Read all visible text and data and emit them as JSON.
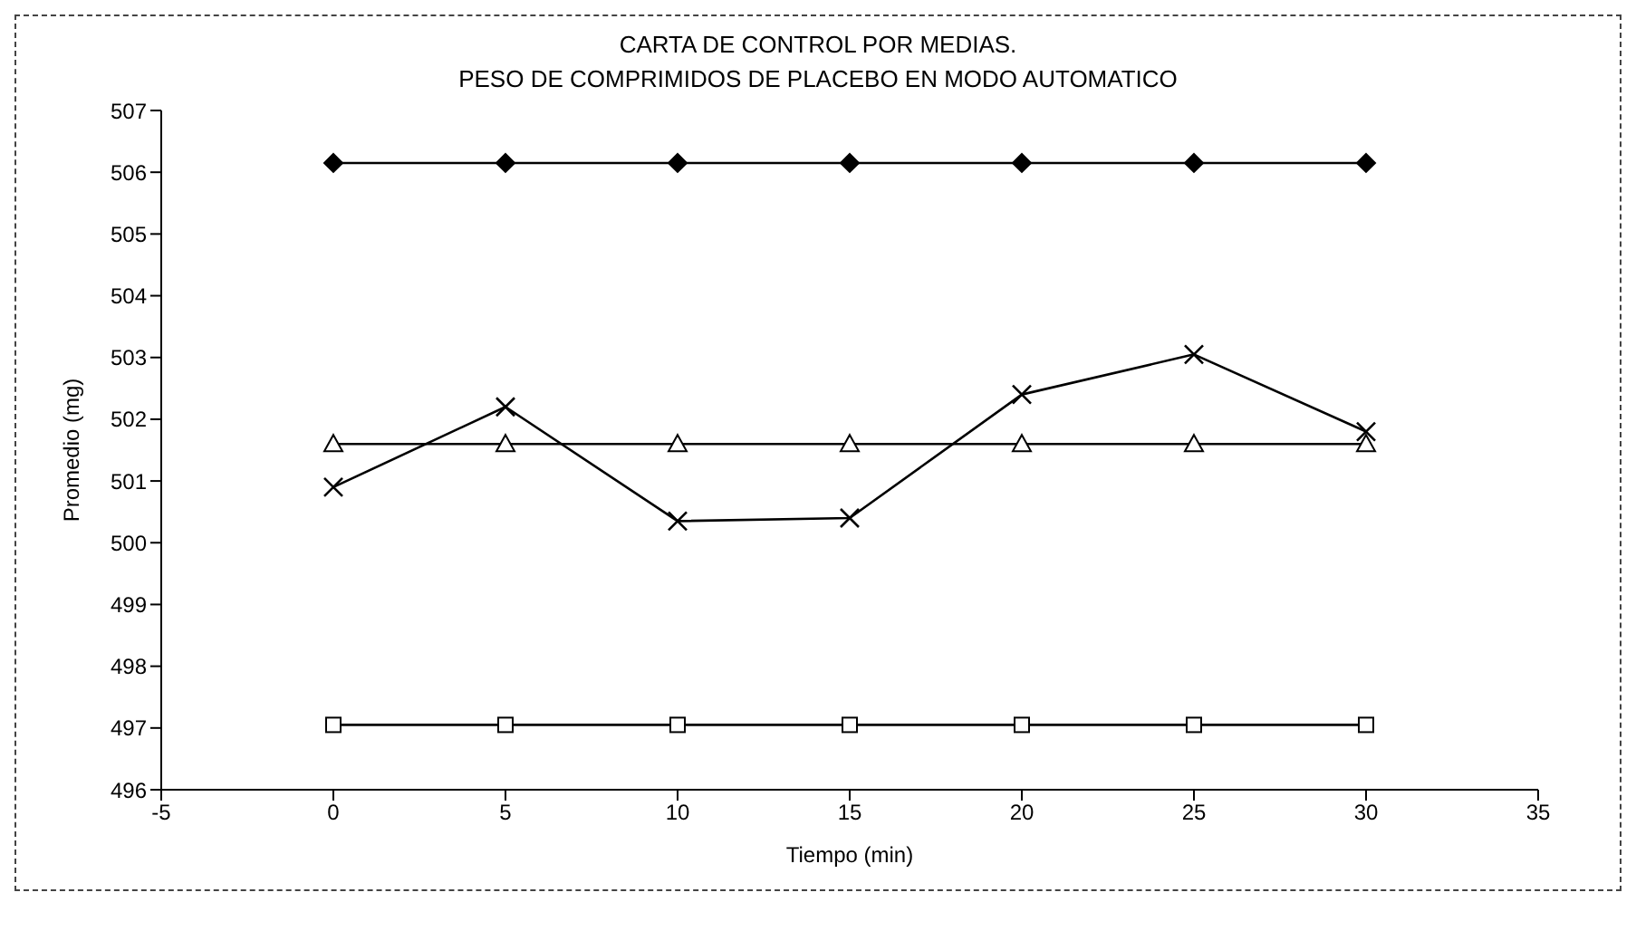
{
  "chart_data": {
    "type": "line",
    "title": "CARTA DE CONTROL POR MEDIAS.",
    "subtitle": "PESO DE COMPRIMIDOS DE PLACEBO EN MODO AUTOMATICO",
    "xlabel": "Tiempo (min)",
    "ylabel": "Promedio (mg)",
    "x": [
      0,
      5,
      10,
      15,
      20,
      25,
      30
    ],
    "series": [
      {
        "color": "#000000",
        "marker": "diamond",
        "values": [
          506.15,
          506.15,
          506.15,
          506.15,
          506.15,
          506.15,
          506.15
        ]
      },
      {
        "color": "#000000",
        "marker": "cross",
        "values": [
          500.9,
          502.2,
          500.35,
          500.4,
          502.4,
          503.05,
          501.8
        ]
      },
      {
        "color": "#000000",
        "marker": "triangle",
        "values": [
          501.6,
          501.6,
          501.6,
          501.6,
          501.6,
          501.6,
          501.6
        ]
      },
      {
        "color": "#000000",
        "marker": "square",
        "values": [
          497.05,
          497.05,
          497.05,
          497.05,
          497.05,
          497.05,
          497.05
        ]
      }
    ],
    "xlim": [
      -5,
      35
    ],
    "xticks": [
      -5,
      0,
      5,
      10,
      15,
      20,
      25,
      30,
      35
    ],
    "ylim": [
      496,
      507
    ],
    "yticks": [
      496,
      497,
      498,
      499,
      500,
      501,
      502,
      503,
      504,
      505,
      506,
      507
    ],
    "grid": false,
    "legend": false,
    "line_style": "solid"
  }
}
